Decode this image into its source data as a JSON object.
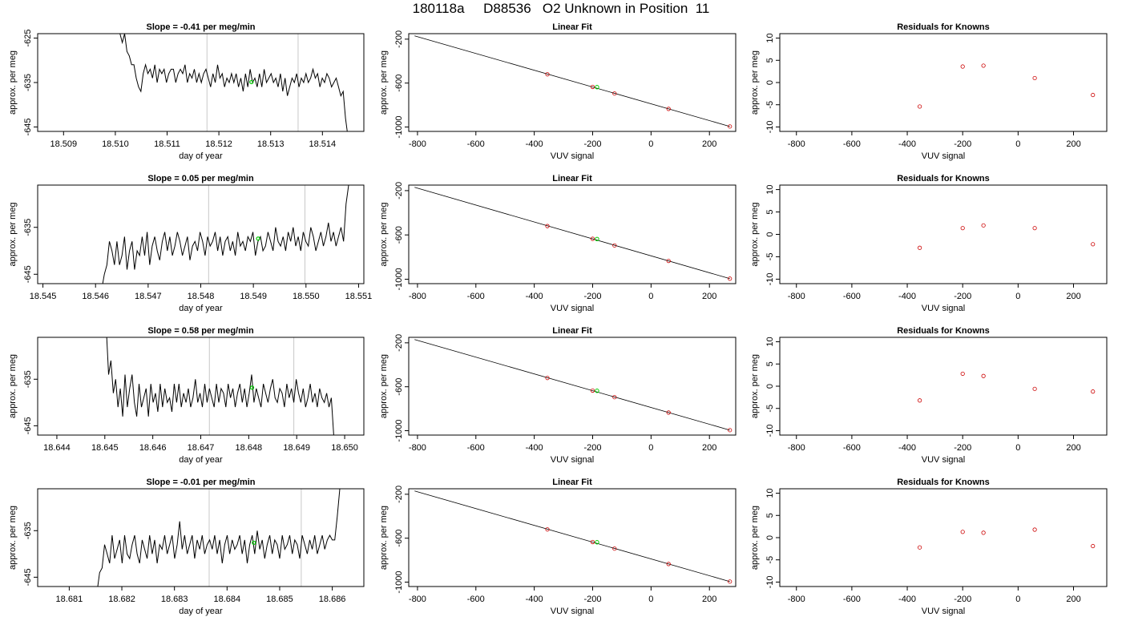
{
  "page": {
    "title": "180118a     D88536   O2 Unknown in Position  11"
  },
  "colors": {
    "axis": "#000000",
    "trace": "#000000",
    "marker_vline": "#c8c8c8",
    "unknown_point": "#00cc00",
    "known_point": "#cc0000"
  },
  "chart_data": [
    {
      "type": "line",
      "row": 1,
      "title": "Slope =  -0.41  per meg/min",
      "xlabel": "day of year",
      "ylabel": "approx. per meg",
      "xlim": [
        18.5085,
        18.5148
      ],
      "ylim": [
        -646,
        -624
      ],
      "xticks": [
        "18.509",
        "18.510",
        "18.511",
        "18.512",
        "18.513",
        "18.514"
      ],
      "yticks": [
        "-625",
        "-635",
        "-645"
      ],
      "vlines": [
        18.51177,
        18.51353
      ],
      "green_point": {
        "x": 18.51263,
        "y": -634.9
      },
      "trace": {
        "x0": 18.51009,
        "x1": 18.51449,
        "y": [
          -624,
          -626,
          -624,
          -628,
          -629,
          -631,
          -631,
          -634,
          -636,
          -637,
          -633,
          -631,
          -633,
          -632,
          -634,
          -631,
          -635,
          -632,
          -633,
          -632,
          -635,
          -633,
          -632,
          -632,
          -635,
          -633,
          -632,
          -633,
          -631,
          -635,
          -633,
          -634,
          -632,
          -635,
          -633,
          -635,
          -633,
          -632,
          -634,
          -636,
          -633,
          -635,
          -631,
          -634,
          -633,
          -636,
          -634,
          -635,
          -633,
          -635,
          -633,
          -636,
          -634,
          -637,
          -633,
          -636,
          -632,
          -635,
          -634,
          -636,
          -633,
          -636,
          -632,
          -635,
          -634,
          -633,
          -635,
          -634,
          -636,
          -633,
          -637,
          -634,
          -638,
          -636,
          -634,
          -635,
          -633,
          -636,
          -634,
          -635,
          -633,
          -635,
          -634,
          -632,
          -634,
          -633,
          -636,
          -634,
          -635,
          -633,
          -634,
          -636,
          -635,
          -634,
          -636,
          -638,
          -637,
          -643,
          -647
        ]
      }
    },
    {
      "type": "line",
      "row": 1,
      "title": "Linear Fit",
      "xlabel": "VUV signal",
      "ylabel": "approx. per meg",
      "xlim": [
        -830,
        290
      ],
      "ylim": [
        -1040,
        -150
      ],
      "xticks": [
        "-800",
        "-600",
        "-400",
        "-200",
        "0",
        "200"
      ],
      "yticks": [
        "-200",
        "-600",
        "-1000"
      ],
      "fit_line": {
        "x": [
          -810,
          270
        ],
        "y": [
          -170,
          -995
        ]
      },
      "known_points": [
        {
          "x": -355,
          "y": -520
        },
        {
          "x": -200,
          "y": -635
        },
        {
          "x": -125,
          "y": -695
        },
        {
          "x": 60,
          "y": -835
        },
        {
          "x": 270,
          "y": -995
        }
      ],
      "unknown_point": {
        "x": -185,
        "y": -637
      }
    },
    {
      "type": "scatter",
      "row": 1,
      "title": "Residuals for Knowns",
      "xlabel": "VUV signal",
      "ylabel": "approx. per meg",
      "xlim": [
        -860,
        320
      ],
      "ylim": [
        -11,
        11
      ],
      "xticks": [
        "-800",
        "-600",
        "-400",
        "-200",
        "0",
        "200"
      ],
      "yticks": [
        "10",
        "5",
        "0",
        "-5",
        "-10"
      ],
      "points": [
        {
          "x": -355,
          "y": -5.4
        },
        {
          "x": -200,
          "y": 3.6
        },
        {
          "x": -125,
          "y": 3.8
        },
        {
          "x": 60,
          "y": 1.0
        },
        {
          "x": 270,
          "y": -2.8
        }
      ]
    },
    {
      "type": "line",
      "row": 2,
      "title": "Slope =  0.05  per meg/min",
      "xlabel": "day of year",
      "ylabel": "approx. per meg",
      "xlim": [
        18.5449,
        18.5511
      ],
      "ylim": [
        -647,
        -626
      ],
      "xticks": [
        "18.545",
        "18.546",
        "18.547",
        "18.548",
        "18.549",
        "18.550",
        "18.551"
      ],
      "yticks": [
        "-635",
        "-645"
      ],
      "vlines": [
        18.54815,
        18.54998
      ],
      "green_point": {
        "x": 18.54909,
        "y": -637.4
      },
      "trace": {
        "x0": 18.54612,
        "x1": 18.55081,
        "y": [
          -648,
          -645,
          -643,
          -638,
          -640,
          -643,
          -638,
          -643,
          -641,
          -637,
          -644,
          -640,
          -638,
          -644,
          -640,
          -641,
          -637,
          -641,
          -636,
          -643,
          -639,
          -637,
          -640,
          -642,
          -638,
          -636,
          -640,
          -637,
          -641,
          -639,
          -636,
          -638,
          -641,
          -639,
          -637,
          -642,
          -639,
          -638,
          -640,
          -636,
          -638,
          -641,
          -637,
          -639,
          -638,
          -636,
          -640,
          -637,
          -641,
          -638,
          -637,
          -640,
          -638,
          -641,
          -636,
          -639,
          -638,
          -640,
          -637,
          -638,
          -636,
          -641,
          -638,
          -637,
          -640,
          -639,
          -636,
          -638,
          -640,
          -635,
          -638,
          -639,
          -637,
          -640,
          -636,
          -638,
          -635,
          -639,
          -637,
          -640,
          -636,
          -638,
          -639,
          -635,
          -637,
          -640,
          -638,
          -636,
          -639,
          -637,
          -634,
          -638,
          -636,
          -639,
          -637,
          -635,
          -638,
          -630,
          -626
        ]
      }
    },
    {
      "type": "line",
      "row": 2,
      "title": "Linear Fit",
      "xlabel": "VUV signal",
      "ylabel": "approx. per meg",
      "xlim": [
        -830,
        290
      ],
      "ylim": [
        -1040,
        -150
      ],
      "xticks": [
        "-800",
        "-600",
        "-400",
        "-200",
        "0",
        "200"
      ],
      "yticks": [
        "-200",
        "-600",
        "-1000"
      ],
      "fit_line": {
        "x": [
          -810,
          270
        ],
        "y": [
          -170,
          -995
        ]
      },
      "known_points": [
        {
          "x": -355,
          "y": -520
        },
        {
          "x": -200,
          "y": -635
        },
        {
          "x": -125,
          "y": -695
        },
        {
          "x": 60,
          "y": -835
        },
        {
          "x": 270,
          "y": -995
        }
      ],
      "unknown_point": {
        "x": -185,
        "y": -637
      }
    },
    {
      "type": "scatter",
      "row": 2,
      "title": "Residuals for Knowns",
      "xlabel": "VUV signal",
      "ylabel": "approx. per meg",
      "xlim": [
        -860,
        320
      ],
      "ylim": [
        -11,
        11
      ],
      "xticks": [
        "-800",
        "-600",
        "-400",
        "-200",
        "0",
        "200"
      ],
      "yticks": [
        "10",
        "5",
        "0",
        "-5",
        "-10"
      ],
      "points": [
        {
          "x": -355,
          "y": -3.0
        },
        {
          "x": -200,
          "y": 1.4
        },
        {
          "x": -125,
          "y": 2.0
        },
        {
          "x": 60,
          "y": 1.4
        },
        {
          "x": 270,
          "y": -2.2
        }
      ]
    },
    {
      "type": "line",
      "row": 3,
      "title": "Slope =  0.58  per meg/min",
      "xlabel": "day of year",
      "ylabel": "approx. per meg",
      "xlim": [
        18.6436,
        18.6504
      ],
      "ylim": [
        -647,
        -626
      ],
      "xticks": [
        "18.644",
        "18.645",
        "18.646",
        "18.647",
        "18.648",
        "18.649",
        "18.650"
      ],
      "yticks": [
        "-635",
        "-645"
      ],
      "vlines": [
        18.64718,
        18.64894
      ],
      "green_point": {
        "x": 18.64807,
        "y": -636.8
      },
      "trace": {
        "x0": 18.64503,
        "x1": 18.64982,
        "y": [
          -624,
          -634,
          -631,
          -638,
          -635,
          -641,
          -637,
          -643,
          -634,
          -641,
          -637,
          -634,
          -640,
          -643,
          -636,
          -641,
          -639,
          -637,
          -643,
          -636,
          -640,
          -638,
          -642,
          -636,
          -641,
          -637,
          -640,
          -639,
          -642,
          -636,
          -640,
          -636,
          -641,
          -638,
          -640,
          -637,
          -641,
          -639,
          -635,
          -640,
          -638,
          -641,
          -636,
          -640,
          -637,
          -639,
          -641,
          -636,
          -640,
          -637,
          -638,
          -641,
          -636,
          -639,
          -637,
          -641,
          -638,
          -636,
          -640,
          -637,
          -641,
          -638,
          -634,
          -640,
          -637,
          -639,
          -641,
          -636,
          -638,
          -640,
          -637,
          -635,
          -639,
          -640,
          -637,
          -638,
          -641,
          -636,
          -639,
          -637,
          -640,
          -635,
          -638,
          -640,
          -637,
          -641,
          -639,
          -636,
          -640,
          -638,
          -641,
          -637,
          -639,
          -640,
          -638,
          -641,
          -639,
          -647,
          -648
        ]
      }
    },
    {
      "type": "line",
      "row": 3,
      "title": "Linear Fit",
      "xlabel": "VUV signal",
      "ylabel": "approx. per meg",
      "xlim": [
        -830,
        290
      ],
      "ylim": [
        -1040,
        -150
      ],
      "xticks": [
        "-800",
        "-600",
        "-400",
        "-200",
        "0",
        "200"
      ],
      "yticks": [
        "-200",
        "-600",
        "-1000"
      ],
      "fit_line": {
        "x": [
          -810,
          270
        ],
        "y": [
          -170,
          -995
        ]
      },
      "known_points": [
        {
          "x": -355,
          "y": -520
        },
        {
          "x": -200,
          "y": -635
        },
        {
          "x": -125,
          "y": -695
        },
        {
          "x": 60,
          "y": -835
        },
        {
          "x": 270,
          "y": -995
        }
      ],
      "unknown_point": {
        "x": -185,
        "y": -637
      }
    },
    {
      "type": "scatter",
      "row": 3,
      "title": "Residuals for Knowns",
      "xlabel": "VUV signal",
      "ylabel": "approx. per meg",
      "xlim": [
        -860,
        320
      ],
      "ylim": [
        -11,
        11
      ],
      "xticks": [
        "-800",
        "-600",
        "-400",
        "-200",
        "0",
        "200"
      ],
      "yticks": [
        "10",
        "5",
        "0",
        "-5",
        "-10"
      ],
      "points": [
        {
          "x": -355,
          "y": -3.2
        },
        {
          "x": -200,
          "y": 2.8
        },
        {
          "x": -125,
          "y": 2.3
        },
        {
          "x": 60,
          "y": -0.6
        },
        {
          "x": 270,
          "y": -1.2
        }
      ]
    },
    {
      "type": "line",
      "row": 4,
      "title": "Slope =  -0.01  per meg/min",
      "xlabel": "day of year",
      "ylabel": "approx. per meg",
      "xlim": [
        18.6804,
        18.6866
      ],
      "ylim": [
        -647,
        -626
      ],
      "xticks": [
        "18.681",
        "18.682",
        "18.683",
        "18.684",
        "18.685",
        "18.686"
      ],
      "yticks": [
        "-635",
        "-645"
      ],
      "vlines": [
        18.68366,
        18.68541
      ],
      "green_point": {
        "x": 18.68451,
        "y": -637.6
      },
      "trace": {
        "x0": 18.68153,
        "x1": 18.68619,
        "y": [
          -648,
          -644,
          -643,
          -638,
          -640,
          -642,
          -636,
          -641,
          -639,
          -637,
          -642,
          -636,
          -640,
          -641,
          -638,
          -636,
          -640,
          -642,
          -637,
          -639,
          -641,
          -636,
          -640,
          -637,
          -642,
          -638,
          -639,
          -636,
          -640,
          -638,
          -636,
          -641,
          -638,
          -633,
          -639,
          -636,
          -640,
          -638,
          -636,
          -641,
          -637,
          -639,
          -636,
          -640,
          -638,
          -637,
          -639,
          -636,
          -640,
          -637,
          -642,
          -638,
          -636,
          -640,
          -637,
          -639,
          -638,
          -636,
          -640,
          -637,
          -642,
          -638,
          -636,
          -640,
          -635,
          -639,
          -637,
          -641,
          -638,
          -636,
          -640,
          -637,
          -638,
          -641,
          -636,
          -639,
          -638,
          -636,
          -640,
          -637,
          -638,
          -641,
          -636,
          -638,
          -640,
          -637,
          -639,
          -636,
          -640,
          -638,
          -636,
          -639,
          -637,
          -636,
          -637,
          -637,
          -632,
          -626,
          -624
        ]
      }
    },
    {
      "type": "line",
      "row": 4,
      "title": "Linear Fit",
      "xlabel": "VUV signal",
      "ylabel": "approx. per meg",
      "xlim": [
        -830,
        290
      ],
      "ylim": [
        -1040,
        -150
      ],
      "xticks": [
        "-800",
        "-600",
        "-400",
        "-200",
        "0",
        "200"
      ],
      "yticks": [
        "-200",
        "-600",
        "-1000"
      ],
      "fit_line": {
        "x": [
          -810,
          270
        ],
        "y": [
          -170,
          -995
        ]
      },
      "known_points": [
        {
          "x": -355,
          "y": -520
        },
        {
          "x": -200,
          "y": -635
        },
        {
          "x": -125,
          "y": -695
        },
        {
          "x": 60,
          "y": -835
        },
        {
          "x": 270,
          "y": -995
        }
      ],
      "unknown_point": {
        "x": -185,
        "y": -637
      }
    },
    {
      "type": "scatter",
      "row": 4,
      "title": "Residuals for Knowns",
      "xlabel": "VUV signal",
      "ylabel": "approx. per meg",
      "xlim": [
        -860,
        320
      ],
      "ylim": [
        -11,
        11
      ],
      "xticks": [
        "-800",
        "-600",
        "-400",
        "-200",
        "0",
        "200"
      ],
      "yticks": [
        "10",
        "5",
        "0",
        "-5",
        "-10"
      ],
      "points": [
        {
          "x": -355,
          "y": -2.2
        },
        {
          "x": -200,
          "y": 1.3
        },
        {
          "x": -125,
          "y": 1.1
        },
        {
          "x": 60,
          "y": 1.8
        },
        {
          "x": 270,
          "y": -1.9
        }
      ]
    }
  ]
}
